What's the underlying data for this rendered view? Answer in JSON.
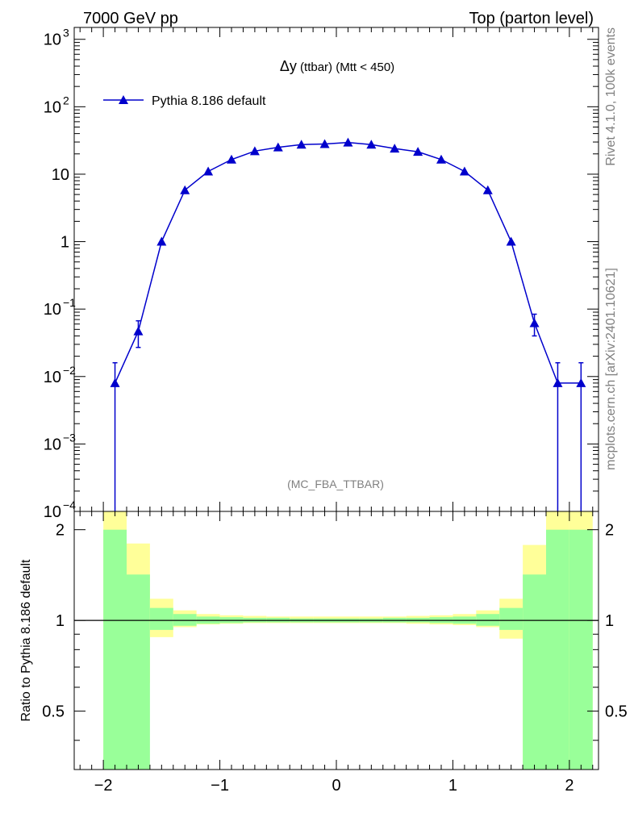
{
  "header": {
    "left_title": "7000 GeV pp",
    "right_title": "Top (parton level)"
  },
  "plot_title": {
    "symbol": "Δy",
    "sub": " (ttbar)",
    "rest": " (Mtt < 450)"
  },
  "watermark": "(MC_FBA_TTBAR)",
  "side_labels": {
    "rivet": "Rivet 4.1.0,  100k events",
    "mcplots": "mcplots.cern.ch [arXiv:2401.10621]"
  },
  "legend": {
    "entries": [
      "Pythia 8.186 default"
    ],
    "placement": "top-left"
  },
  "colors": {
    "mc_line": "#0000cc",
    "band_inner": "#99ff99",
    "band_outer": "#ffff99"
  },
  "chart_data": [
    {
      "type": "line",
      "yscale": "log",
      "xlim": [
        -2.25,
        2.25
      ],
      "ylim": [
        0.0001,
        1500
      ],
      "y_ticks": [
        {
          "label": "10",
          "exp": "-4",
          "value": 0.0001
        },
        {
          "label": "10",
          "exp": "-3",
          "value": 0.001
        },
        {
          "label": "10",
          "exp": "-2",
          "value": 0.01
        },
        {
          "label": "10",
          "exp": "-1",
          "value": 0.1
        },
        {
          "label": "1",
          "exp": "",
          "value": 1
        },
        {
          "label": "10",
          "exp": "",
          "value": 10
        },
        {
          "label": "10",
          "exp": "2",
          "value": 100
        },
        {
          "label": "10",
          "exp": "3",
          "value": 1000
        }
      ],
      "series": [
        {
          "name": "Pythia 8.186 default",
          "x": [
            -1.9,
            -1.7,
            -1.5,
            -1.3,
            -1.1,
            -0.9,
            -0.7,
            -0.5,
            -0.3,
            -0.1,
            0.1,
            0.3,
            0.5,
            0.7,
            0.9,
            1.1,
            1.3,
            1.5,
            1.7,
            1.9,
            2.1
          ],
          "y": [
            0.008,
            0.047,
            1.0,
            5.8,
            11.0,
            16.5,
            22.0,
            25.0,
            27.5,
            28.0,
            29.5,
            27.5,
            24.0,
            21.5,
            16.5,
            11.0,
            5.8,
            1.0,
            0.062,
            0.008,
            0.008
          ],
          "err": [
            0.008,
            0.02,
            0.05,
            0.15,
            0.25,
            0.3,
            0.35,
            0.4,
            0.4,
            0.4,
            0.4,
            0.4,
            0.4,
            0.35,
            0.3,
            0.25,
            0.15,
            0.05,
            0.022,
            0.008,
            0.008
          ]
        }
      ]
    },
    {
      "type": "area",
      "ylabel": "Ratio to Pythia 8.186 default",
      "xlim": [
        -2.25,
        2.25
      ],
      "ylim": [
        0.32,
        2.3
      ],
      "x_ticks": [
        -2,
        -1,
        0,
        1,
        2
      ],
      "x_tick_labels": [
        "−2",
        "−1",
        "0",
        "1",
        "2"
      ],
      "y_ticks": [
        0.5,
        1,
        2
      ],
      "y_tick_labels": [
        "0.5",
        "1",
        "2"
      ],
      "reference_line": 1,
      "bins": [
        {
          "lo": -2.0,
          "hi": -1.8,
          "inner": [
            0.32,
            2.0
          ],
          "outer": [
            0.32,
            2.3
          ]
        },
        {
          "lo": -1.8,
          "hi": -1.6,
          "inner": [
            0.32,
            1.42
          ],
          "outer": [
            0.62,
            1.8
          ]
        },
        {
          "lo": -1.6,
          "hi": -1.4,
          "inner": [
            0.93,
            1.1
          ],
          "outer": [
            0.88,
            1.18
          ]
        },
        {
          "lo": -1.4,
          "hi": -1.2,
          "inner": [
            0.96,
            1.05
          ],
          "outer": [
            0.95,
            1.08
          ]
        },
        {
          "lo": -1.2,
          "hi": -1.0,
          "inner": [
            0.975,
            1.03
          ],
          "outer": [
            0.97,
            1.05
          ]
        },
        {
          "lo": -1.0,
          "hi": -0.8,
          "inner": [
            0.98,
            1.025
          ],
          "outer": [
            0.975,
            1.04
          ]
        },
        {
          "lo": -0.8,
          "hi": -0.6,
          "inner": [
            0.985,
            1.02
          ],
          "outer": [
            0.98,
            1.035
          ]
        },
        {
          "lo": -0.6,
          "hi": -0.4,
          "inner": [
            0.985,
            1.02
          ],
          "outer": [
            0.98,
            1.03
          ]
        },
        {
          "lo": -0.4,
          "hi": -0.2,
          "inner": [
            0.985,
            1.015
          ],
          "outer": [
            0.98,
            1.03
          ]
        },
        {
          "lo": -0.2,
          "hi": 0.0,
          "inner": [
            0.985,
            1.015
          ],
          "outer": [
            0.98,
            1.03
          ]
        },
        {
          "lo": 0.0,
          "hi": 0.2,
          "inner": [
            0.985,
            1.015
          ],
          "outer": [
            0.98,
            1.03
          ]
        },
        {
          "lo": 0.2,
          "hi": 0.4,
          "inner": [
            0.985,
            1.015
          ],
          "outer": [
            0.98,
            1.03
          ]
        },
        {
          "lo": 0.4,
          "hi": 0.6,
          "inner": [
            0.985,
            1.02
          ],
          "outer": [
            0.98,
            1.03
          ]
        },
        {
          "lo": 0.6,
          "hi": 0.8,
          "inner": [
            0.985,
            1.02
          ],
          "outer": [
            0.975,
            1.035
          ]
        },
        {
          "lo": 0.8,
          "hi": 1.0,
          "inner": [
            0.98,
            1.025
          ],
          "outer": [
            0.97,
            1.04
          ]
        },
        {
          "lo": 1.0,
          "hi": 1.2,
          "inner": [
            0.975,
            1.03
          ],
          "outer": [
            0.965,
            1.05
          ]
        },
        {
          "lo": 1.2,
          "hi": 1.4,
          "inner": [
            0.96,
            1.05
          ],
          "outer": [
            0.95,
            1.08
          ]
        },
        {
          "lo": 1.4,
          "hi": 1.6,
          "inner": [
            0.93,
            1.1
          ],
          "outer": [
            0.87,
            1.18
          ]
        },
        {
          "lo": 1.6,
          "hi": 1.8,
          "inner": [
            0.32,
            1.42
          ],
          "outer": [
            0.32,
            1.78
          ]
        },
        {
          "lo": 1.8,
          "hi": 2.0,
          "inner": [
            0.32,
            2.0
          ],
          "outer": [
            0.32,
            2.3
          ]
        },
        {
          "lo": 2.0,
          "hi": 2.2,
          "inner": [
            0.32,
            2.0
          ],
          "outer": [
            0.32,
            2.3
          ]
        }
      ]
    }
  ]
}
